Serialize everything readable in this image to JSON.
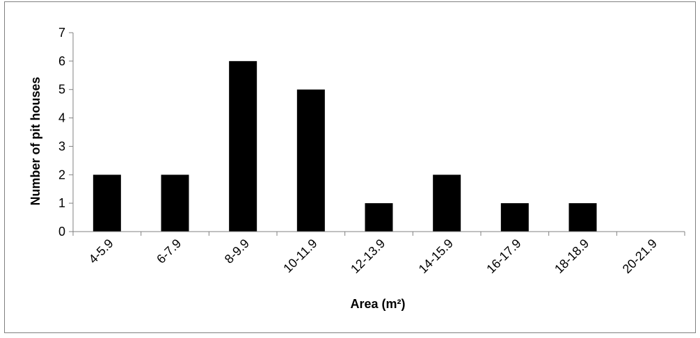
{
  "chart_data": {
    "type": "bar",
    "categories": [
      "4-5.9",
      "6-7.9",
      "8-9.9",
      "10-11.9",
      "12-13.9",
      "14-15.9",
      "16-17.9",
      "18-18.9",
      "20-21.9"
    ],
    "values": [
      2,
      2,
      6,
      5,
      1,
      2,
      1,
      1,
      0
    ],
    "xlabel": "Area (m²)",
    "ylabel": "Number of pit houses",
    "ylim": [
      0,
      7
    ],
    "yticks": [
      0,
      1,
      2,
      3,
      4,
      5,
      6,
      7
    ],
    "grid": false,
    "legend": "none",
    "colors": {
      "bar": "#000000",
      "axis": "#808080",
      "frame": "#808080"
    }
  }
}
